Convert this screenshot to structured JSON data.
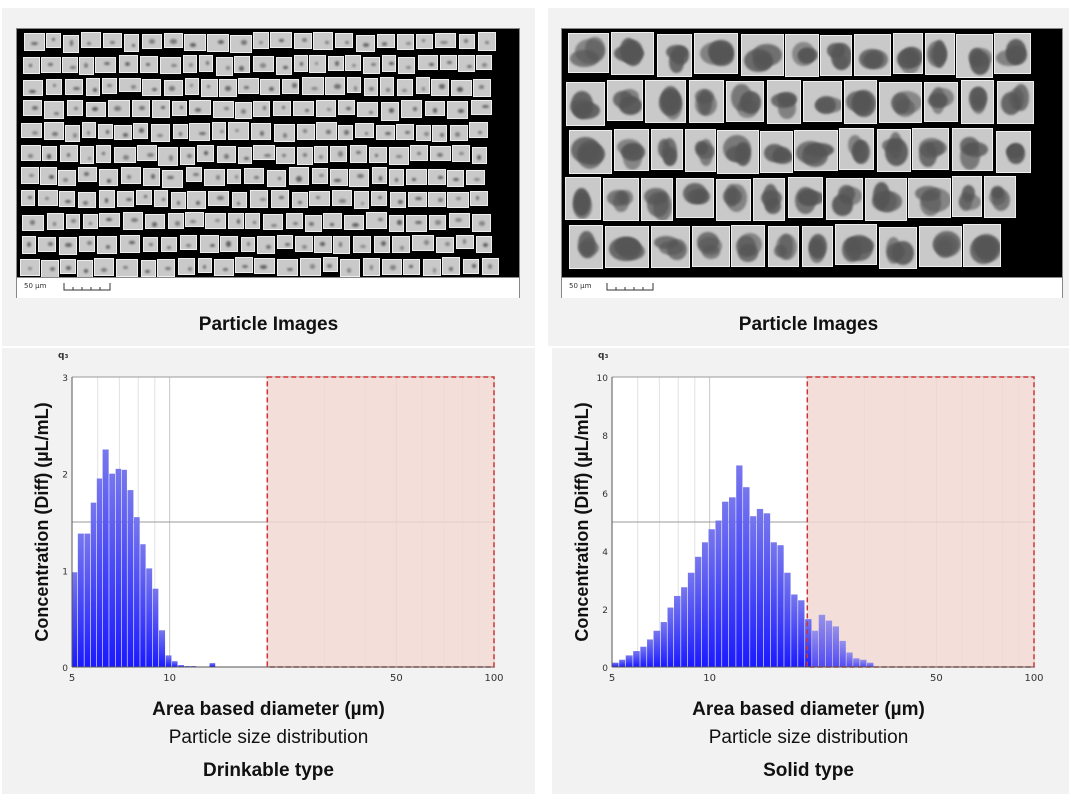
{
  "left": {
    "images_caption": "Particle Images",
    "scale_label": "50 µm",
    "type_label": "Drinkable type"
  },
  "right": {
    "images_caption": "Particle Images",
    "scale_label": "50 µm",
    "type_label": "Solid type"
  },
  "chart_common": {
    "ylabel": "Concentration (Diff) (µL/mL)",
    "xlabel": "Area based diameter (µm)",
    "subtitle": "Particle size distribution",
    "q_symbol": "q₃",
    "bar_color_top": "#7777ee",
    "bar_color_bottom": "#1a1aff",
    "highlight_color": "#f2d8d2",
    "highlight_border": "#cc3333"
  },
  "chart_data": [
    {
      "type": "bar",
      "name": "Drinkable type",
      "x_scale": "log",
      "xlim": [
        5,
        100
      ],
      "x_ticks": [
        5,
        10,
        50,
        100
      ],
      "ylim": [
        0,
        3
      ],
      "y_ticks": [
        0,
        1,
        2,
        3
      ],
      "highlight_x_range": [
        20,
        100
      ],
      "bin_edges": [
        5.0,
        5.2,
        5.45,
        5.7,
        5.95,
        6.2,
        6.5,
        6.8,
        7.1,
        7.4,
        7.75,
        8.1,
        8.45,
        8.85,
        9.25,
        9.7,
        10.15,
        10.6,
        11.1,
        11.6,
        12.1,
        12.65,
        13.25,
        13.85,
        14.5,
        15.15
      ],
      "values": [
        0.98,
        1.38,
        1.38,
        1.7,
        1.95,
        2.25,
        2.0,
        2.05,
        2.04,
        1.83,
        1.55,
        1.27,
        1.02,
        0.81,
        0.38,
        0.12,
        0.06,
        0.02,
        0.01,
        0.01,
        0.0,
        0.0,
        0.04,
        0.0,
        0.0
      ]
    },
    {
      "type": "bar",
      "name": "Solid type",
      "x_scale": "log",
      "xlim": [
        5,
        100
      ],
      "x_ticks": [
        5,
        10,
        50,
        100
      ],
      "ylim": [
        0,
        10
      ],
      "y_ticks": [
        0,
        2,
        4,
        6,
        8,
        10
      ],
      "highlight_x_range": [
        20,
        100
      ],
      "bin_edges": [
        5.0,
        5.25,
        5.5,
        5.8,
        6.1,
        6.4,
        6.7,
        7.05,
        7.4,
        7.75,
        8.15,
        8.55,
        9.0,
        9.45,
        9.9,
        10.4,
        10.9,
        11.45,
        12.05,
        12.65,
        13.3,
        13.95,
        14.65,
        15.4,
        16.15,
        16.95,
        17.8,
        18.7,
        19.65,
        20.65,
        21.65,
        22.75,
        23.9,
        25.1,
        26.35,
        27.65,
        29.05,
        30.5,
        32.05
      ],
      "values": [
        0.15,
        0.25,
        0.4,
        0.55,
        0.7,
        0.95,
        1.25,
        1.55,
        2.05,
        2.45,
        2.75,
        3.25,
        3.8,
        4.3,
        4.75,
        5.05,
        5.7,
        5.85,
        6.95,
        6.2,
        5.2,
        5.45,
        5.3,
        4.3,
        4.2,
        3.25,
        2.5,
        2.3,
        1.65,
        1.25,
        1.8,
        1.6,
        1.4,
        0.9,
        0.5,
        0.3,
        0.25,
        0.15
      ]
    }
  ]
}
